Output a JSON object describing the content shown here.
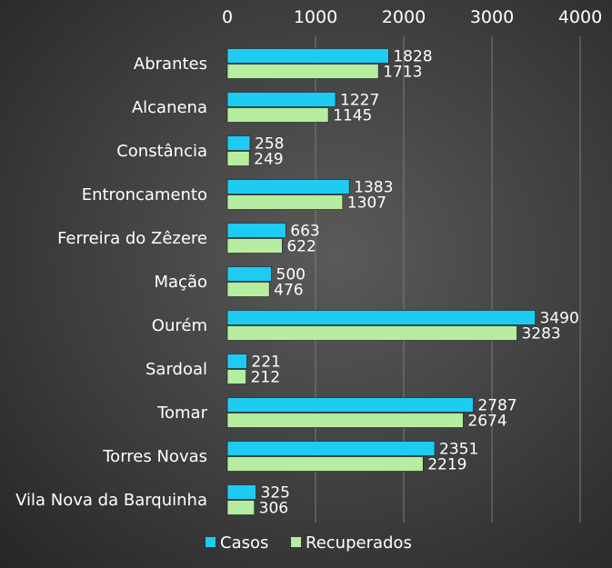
{
  "chart_data": {
    "type": "bar",
    "orientation": "horizontal",
    "xlim": [
      0,
      4000
    ],
    "x_ticks": [
      "0",
      "1000",
      "2000",
      "3000",
      "4000"
    ],
    "grid": true,
    "axis_position": "top",
    "legend_position": "bottom",
    "categories": [
      "Abrantes",
      "Alcanena",
      "Constância",
      "Entroncamento",
      "Ferreira do Zêzere",
      "Mação",
      "Ourém",
      "Sardoal",
      "Tomar",
      "Torres Novas",
      "Vila Nova da Barquinha"
    ],
    "series": [
      {
        "name": "Casos",
        "color": "#1ecbf2",
        "values": [
          1828,
          1227,
          258,
          1383,
          663,
          500,
          3490,
          221,
          2787,
          2351,
          325
        ]
      },
      {
        "name": "Recuperados",
        "color": "#b6eda0",
        "values": [
          1713,
          1145,
          249,
          1307,
          622,
          476,
          3283,
          212,
          2674,
          2219,
          306
        ]
      }
    ]
  }
}
